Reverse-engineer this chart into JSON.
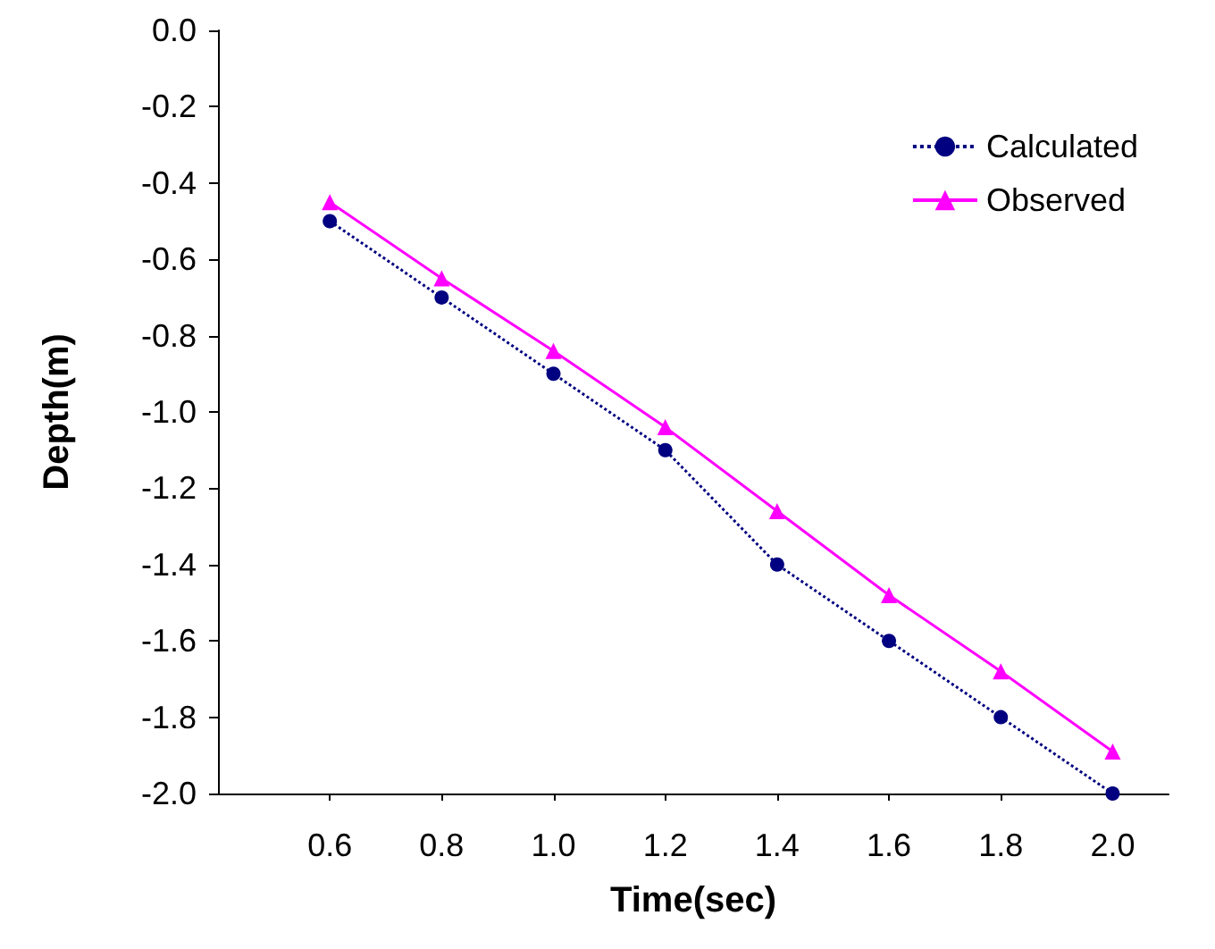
{
  "chart_data": {
    "type": "line",
    "xlabel": "Time(sec)",
    "ylabel": "Depth(m)",
    "x": [
      0.6,
      0.8,
      1.0,
      1.2,
      1.4,
      1.6,
      1.8,
      2.0
    ],
    "series": [
      {
        "name": "Calculated",
        "color": "#000080",
        "values": [
          -0.5,
          -0.7,
          -0.9,
          -1.1,
          -1.4,
          -1.6,
          -1.8,
          -2.0
        ],
        "marker": "circle",
        "line_style": "dotted"
      },
      {
        "name": "Observed",
        "color": "#ff00ff",
        "values": [
          -0.45,
          -0.65,
          -0.84,
          -1.04,
          -1.26,
          -1.48,
          -1.68,
          -1.89
        ],
        "marker": "triangle",
        "line_style": "solid"
      }
    ],
    "xlim": [
      0.4,
      2.1
    ],
    "xticks": [
      {
        "value": 0.6,
        "label": "0.6"
      },
      {
        "value": 0.8,
        "label": "0.8"
      },
      {
        "value": 1.0,
        "label": "1.0"
      },
      {
        "value": 1.2,
        "label": "1.2"
      },
      {
        "value": 1.4,
        "label": "1.4"
      },
      {
        "value": 1.6,
        "label": "1.6"
      },
      {
        "value": 1.8,
        "label": "1.8"
      },
      {
        "value": 2.0,
        "label": "2.0"
      }
    ],
    "ylim": [
      -2.0,
      0.0
    ],
    "yticks": [
      {
        "value": -2.0,
        "label": "-2.0"
      },
      {
        "value": -1.8,
        "label": "-1.8"
      },
      {
        "value": -1.6,
        "label": "-1.6"
      },
      {
        "value": -1.4,
        "label": "-1.4"
      },
      {
        "value": -1.2,
        "label": "-1.2"
      },
      {
        "value": -1.0,
        "label": "-1.0"
      },
      {
        "value": -0.8,
        "label": "-0.8"
      },
      {
        "value": -0.6,
        "label": "-0.6"
      },
      {
        "value": -0.4,
        "label": "-0.4"
      },
      {
        "value": -0.2,
        "label": "-0.2"
      },
      {
        "value": 0.0,
        "label": "0.0"
      }
    ],
    "grid": false,
    "legend": "top right"
  }
}
